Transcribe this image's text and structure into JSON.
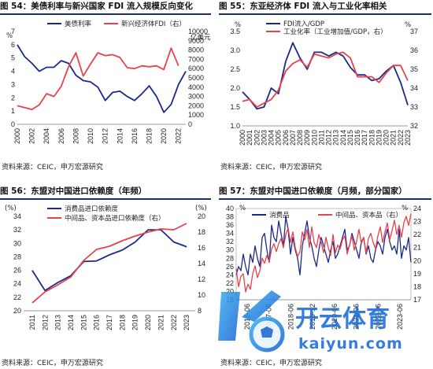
{
  "panels": [
    {
      "title": "图 54：美债利率与新兴国家 FDI 流入规模反向变化",
      "source": "资料来源：CEIC，申万宏源研究",
      "left_unit": "%",
      "right_unit": "亿美元",
      "chart_data": {
        "type": "line",
        "x": [
          "2000",
          "2001",
          "2002",
          "2003",
          "2004",
          "2005",
          "2006",
          "2007",
          "2008",
          "2009",
          "2010",
          "2011",
          "2012",
          "2013",
          "2014",
          "2015",
          "2016",
          "2017",
          "2018",
          "2019",
          "2020",
          "2021",
          "2022",
          "2023"
        ],
        "x_tick_labels": [
          "2000",
          "2002",
          "2004",
          "2006",
          "2008",
          "2010",
          "2012",
          "2014",
          "2016",
          "2018",
          "2020",
          "2022"
        ],
        "ylim_left": [
          0,
          7
        ],
        "yticks_left": [
          0,
          1,
          2,
          3,
          4,
          5,
          6,
          7
        ],
        "ylim_right": [
          0,
          10000
        ],
        "yticks_right": [
          0,
          1000,
          2000,
          3000,
          4000,
          5000,
          6000,
          7000,
          8000,
          9000,
          10000
        ],
        "series": [
          {
            "name": "美债利率",
            "axis": "left",
            "color": "#1a2a8c",
            "values": [
              6.0,
              5.1,
              4.6,
              4.0,
              4.3,
              4.3,
              4.8,
              4.6,
              3.7,
              3.3,
              3.2,
              2.8,
              1.8,
              2.4,
              2.5,
              2.1,
              1.8,
              2.3,
              2.9,
              2.1,
              0.9,
              1.5,
              3.0,
              4.0
            ]
          },
          {
            "name": "新兴经济体FDI（右）",
            "axis": "right",
            "color": "#e8424a",
            "values": [
              2000,
              1800,
              1600,
              2100,
              3300,
              3000,
              4100,
              6200,
              7700,
              5200,
              6500,
              7700,
              7400,
              7500,
              7200,
              6100,
              6000,
              6300,
              6200,
              6300,
              5900,
              8200,
              6300,
              null
            ]
          }
        ]
      }
    },
    {
      "title": "图 55：东亚经济体 FDI 流入与工业化率相关",
      "source": "资料来源：CEIC，申万宏源研究",
      "left_unit": "%",
      "right_unit": "%",
      "chart_data": {
        "type": "line",
        "x": [
          "2000",
          "2001",
          "2002",
          "2003",
          "2004",
          "2005",
          "2006",
          "2007",
          "2008",
          "2009",
          "2010",
          "2011",
          "2012",
          "2013",
          "2014",
          "2015",
          "2016",
          "2017",
          "2018",
          "2019",
          "2020",
          "2021",
          "2022",
          "2023"
        ],
        "ylim_left": [
          1.0,
          3.5
        ],
        "yticks_left": [
          1.0,
          1.5,
          2.0,
          2.5,
          3.0,
          3.5
        ],
        "ylim_right": [
          32,
          37
        ],
        "yticks_right": [
          32,
          33,
          34,
          35,
          36,
          37
        ],
        "series": [
          {
            "name": "FDI流入/GDP",
            "axis": "left",
            "color": "#1a2a8c",
            "values": [
              1.9,
              1.7,
              1.45,
              1.5,
              2.0,
              1.85,
              2.7,
              3.2,
              2.8,
              2.5,
              2.95,
              2.95,
              2.85,
              2.95,
              2.85,
              2.55,
              2.35,
              2.35,
              2.2,
              2.25,
              2.45,
              2.6,
              2.15,
              1.55
            ]
          },
          {
            "name": "工业化率（工业增加值/GDP，右）",
            "axis": "right",
            "color": "#e8424a",
            "values": [
              33.3,
              33.4,
              33.0,
              33.2,
              33.4,
              33.9,
              34.9,
              35.3,
              35.5,
              35.1,
              35.8,
              35.7,
              35.6,
              35.8,
              35.9,
              35.6,
              34.6,
              34.6,
              34.6,
              34.3,
              34.8,
              35.2,
              35.2,
              34.4
            ]
          }
        ]
      }
    },
    {
      "title": "图 56：东盟对中国进口依赖度（年频）",
      "source": "资料来源：CEIC，申万宏源研究",
      "left_unit": "(%)",
      "right_unit": "(%)",
      "chart_data": {
        "type": "line",
        "x": [
          "2011",
          "2012",
          "2013",
          "2014",
          "2015",
          "2016",
          "2017",
          "2018",
          "2019",
          "2020",
          "2021",
          "2022",
          "2023"
        ],
        "ylim_left": [
          20,
          34
        ],
        "yticks_left": [
          20,
          22,
          24,
          26,
          28,
          30,
          32,
          34
        ],
        "ylim_right": [
          8,
          20
        ],
        "yticks_right": [
          8,
          10,
          12,
          14,
          16,
          18,
          20
        ],
        "series": [
          {
            "name": "消费品进口依赖度",
            "axis": "left",
            "color": "#1a2a8c",
            "values": [
              26.0,
              23.0,
              24.2,
              25.2,
              27.3,
              27.4,
              28.3,
              29.0,
              30.2,
              32.0,
              32.0,
              30.2,
              29.5
            ]
          },
          {
            "name": "中间品、资本品进口依赖度（右）",
            "axis": "right",
            "color": "#e8424a",
            "values": [
              9.0,
              10.4,
              11.3,
              12.3,
              14.4,
              15.8,
              16.2,
              16.9,
              17.5,
              18.0,
              18.4,
              18.3,
              19.1
            ]
          }
        ]
      }
    },
    {
      "title": "图 57：东盟对中国进口依赖度（月频，部分国家）",
      "source": "资料来源：CEIC，申万宏源研究",
      "left_unit": "%",
      "right_unit": "%",
      "chart_data": {
        "type": "line",
        "x_tick_labels": [
          "2016-06",
          "2017-06",
          "2018-06",
          "2019-12",
          "2020-06",
          "2021-06",
          "2022-06",
          "2023-06"
        ],
        "ylim_left": [
          18,
          40
        ],
        "yticks_left": [
          18,
          20,
          22,
          24,
          26,
          28,
          30,
          32,
          34,
          36,
          38,
          40
        ],
        "ylim_right": [
          17,
          24
        ],
        "yticks_right": [
          17,
          18,
          19,
          20,
          21,
          22,
          23,
          24
        ],
        "series": [
          {
            "name": "消费品",
            "axis": "left",
            "color": "#1a2a8c",
            "values": [
              24,
              26,
              25,
              29,
              26,
              24,
              29,
              27,
              31,
              28,
              26,
              33,
              34,
              30,
              27,
              36,
              33,
              32,
              37,
              34,
              31,
              38,
              35,
              29,
              33,
              30,
              28,
              24,
              31,
              34,
              37,
              33,
              31,
              28,
              26,
              30,
              33,
              31,
              29,
              27,
              30,
              32,
              28,
              29,
              31,
              33,
              35,
              30,
              31,
              34,
              32,
              30,
              28,
              32,
              33,
              29,
              31,
              28,
              27,
              30,
              32,
              31,
              29,
              33,
              35,
              32,
              30,
              31,
              29,
              35,
              28,
              31,
              30,
              33,
              27
            ]
          },
          {
            "name": "中间品、资本品（右）",
            "axis": "right",
            "color": "#e8424a",
            "values": [
              19.4,
              18.0,
              18.8,
              19.0,
              17.6,
              18.2,
              17.8,
              19.0,
              19.6,
              18.7,
              19.2,
              20.2,
              19.8,
              20.4,
              19.9,
              20.9,
              21.3,
              20.7,
              21.3,
              21.7,
              21.0,
              22.0,
              22.5,
              21.4,
              22.2,
              21.0,
              20.3,
              20.7,
              22.2,
              21.6,
              22.4,
              21.0,
              22.6,
              21.4,
              21.0,
              22.0,
              21.4,
              20.6,
              21.8,
              21.0,
              20.4,
              22.0,
              20.6,
              21.2,
              20.9,
              21.6,
              21.9,
              20.5,
              21.2,
              21.9,
              20.8,
              21.5,
              22.4,
              21.3,
              21.8,
              20.6,
              21.7,
              22.1,
              21.4,
              20.9,
              21.9,
              22.6,
              21.4,
              22.2,
              22.9,
              21.6,
              22.3,
              23.1,
              22.0,
              22.7,
              21.8,
              22.9,
              23.4,
              22.7,
              23.6
            ]
          }
        ]
      }
    }
  ],
  "watermark": {
    "brand_cn": "开云体育",
    "domain": "kaiyun.com",
    "logo_letter": "K"
  }
}
